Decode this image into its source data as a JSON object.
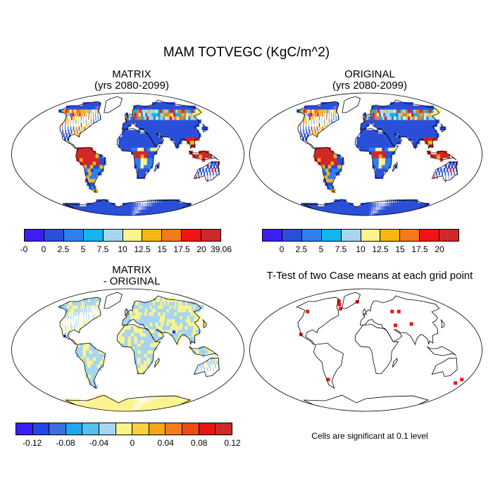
{
  "figure": {
    "title": "MAM TOTVEGC (KgC/m^2)"
  },
  "panels": {
    "matrix": {
      "title_line1": "MATRIX",
      "title_line2": "(yrs 2080-2099)"
    },
    "original": {
      "title_line1": "ORIGINAL",
      "title_line2": "(yrs 2080-2099)"
    },
    "difference": {
      "title_line1": "MATRIX",
      "title_line2": "- ORIGINAL"
    },
    "ttest": {
      "title": "T-Test of two Case means at each grid point",
      "note": "Cells are significant at 0.1 level"
    }
  },
  "colorbars": {
    "matrix": {
      "colors": [
        "#3b1ff0",
        "#2a4fd8",
        "#2f7ff0",
        "#14b4ee",
        "#a6d6ef",
        "#fbf38f",
        "#f7b614",
        "#f47a1c",
        "#f01414",
        "#d02828"
      ],
      "labels": [
        "-0",
        "0",
        "2.5",
        "5",
        "7.5",
        "10",
        "12.5",
        "15",
        "17.5",
        "20",
        "39.06"
      ]
    },
    "original": {
      "colors": [
        "#3b1ff0",
        "#2a4fd8",
        "#2f7ff0",
        "#14b4ee",
        "#a6d6ef",
        "#fbf38f",
        "#f7b614",
        "#f47a1c",
        "#f01414",
        "#d02828"
      ],
      "labels": [
        "0",
        "2.5",
        "5",
        "7.5",
        "10",
        "12.5",
        "15",
        "17.5",
        "20"
      ]
    },
    "difference": {
      "colors": [
        "#3b1ff0",
        "#2446e6",
        "#3b6fe0",
        "#1ea7ee",
        "#53c2ee",
        "#a6d6ef",
        "#fbf38f",
        "#f8d23a",
        "#f5a516",
        "#f47a1c",
        "#f04a14",
        "#e81414",
        "#d02828"
      ],
      "labels": [
        "-0.12",
        "-0.08",
        "-0.04",
        "0",
        "0.04",
        "0.08",
        "0.12"
      ]
    }
  },
  "map_colors": {
    "ocean": "#ffffff",
    "coast": "#000000",
    "low_veg": "#2a4fd8",
    "high_veg": "#d02828",
    "diff_base": "#a6d6ef",
    "diff_pos": "#fbf38f",
    "significant": "#f01414"
  }
}
